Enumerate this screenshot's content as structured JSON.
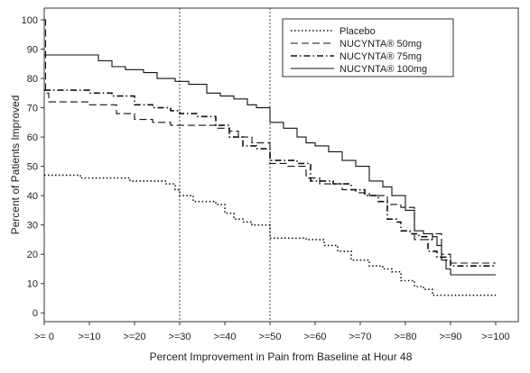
{
  "chart_data": {
    "type": "line",
    "title": "",
    "xlabel": "Percent Improvement in Pain from Baseline at Hour 48",
    "ylabel": "Percent of Patients Improved",
    "xlim": [
      0,
      105
    ],
    "ylim": [
      -3,
      104
    ],
    "x_ticks": [
      0,
      10,
      20,
      30,
      40,
      50,
      60,
      70,
      80,
      90,
      100
    ],
    "x_tick_labels": [
      ">= 0",
      ">=10",
      ">=20",
      ">=30",
      ">=40",
      ">=50",
      ">=60",
      ">=70",
      ">=80",
      ">=90",
      ">=100"
    ],
    "y_ticks": [
      0,
      10,
      20,
      30,
      40,
      50,
      60,
      70,
      80,
      90,
      100
    ],
    "y_tick_labels": [
      "0",
      "10",
      "20",
      "30",
      "40",
      "50",
      "60",
      "70",
      "80",
      "90",
      "100"
    ],
    "reference_lines_x": [
      30,
      50
    ],
    "legend_position": "top-right",
    "grid": false,
    "series": [
      {
        "name": "Placebo",
        "dash": "dotted",
        "points": [
          [
            0,
            47
          ],
          [
            5,
            47
          ],
          [
            8,
            46
          ],
          [
            16,
            46
          ],
          [
            19,
            45
          ],
          [
            27,
            44
          ],
          [
            29,
            42
          ],
          [
            30,
            40
          ],
          [
            33,
            38
          ],
          [
            38,
            37
          ],
          [
            40,
            34
          ],
          [
            42,
            32
          ],
          [
            44,
            31
          ],
          [
            46,
            30
          ],
          [
            50,
            30
          ],
          [
            50,
            25.5
          ],
          [
            58,
            25
          ],
          [
            62,
            23
          ],
          [
            65,
            21
          ],
          [
            68,
            18
          ],
          [
            72,
            16
          ],
          [
            75,
            15
          ],
          [
            77,
            14
          ],
          [
            79,
            11
          ],
          [
            82,
            9
          ],
          [
            84,
            8
          ],
          [
            86,
            6
          ],
          [
            90,
            6
          ],
          [
            95,
            6
          ],
          [
            100,
            6
          ]
        ]
      },
      {
        "name": "NUCYNTA® 50mg",
        "dash": "dashed",
        "points": [
          [
            0,
            100
          ],
          [
            0.3,
            75
          ],
          [
            1,
            72
          ],
          [
            8,
            72
          ],
          [
            10,
            71
          ],
          [
            13,
            71
          ],
          [
            16,
            68
          ],
          [
            20,
            66
          ],
          [
            24,
            65
          ],
          [
            28,
            64
          ],
          [
            30,
            64
          ],
          [
            35,
            64
          ],
          [
            38,
            63
          ],
          [
            41,
            62
          ],
          [
            43,
            60
          ],
          [
            46,
            58
          ],
          [
            50,
            58
          ],
          [
            50,
            51
          ],
          [
            54,
            50
          ],
          [
            58,
            46
          ],
          [
            61,
            44
          ],
          [
            66,
            42
          ],
          [
            69,
            41
          ],
          [
            72,
            40
          ],
          [
            76,
            37
          ],
          [
            79,
            36
          ],
          [
            82,
            25
          ],
          [
            84,
            25
          ],
          [
            86,
            27
          ],
          [
            88,
            20
          ],
          [
            90,
            17
          ],
          [
            95,
            17
          ],
          [
            100,
            17
          ]
        ]
      },
      {
        "name": "NUCYNTA® 75mg",
        "dash": "dashdot",
        "points": [
          [
            0,
            76
          ],
          [
            8,
            76
          ],
          [
            10,
            75
          ],
          [
            15,
            74
          ],
          [
            20,
            71
          ],
          [
            24,
            70
          ],
          [
            28,
            69
          ],
          [
            30,
            68
          ],
          [
            34,
            67
          ],
          [
            38,
            64
          ],
          [
            41,
            60
          ],
          [
            44,
            57
          ],
          [
            47,
            56
          ],
          [
            50,
            56
          ],
          [
            50,
            52
          ],
          [
            56,
            51
          ],
          [
            59,
            45
          ],
          [
            64,
            44
          ],
          [
            68,
            42
          ],
          [
            71,
            40
          ],
          [
            74,
            38
          ],
          [
            76,
            32
          ],
          [
            78,
            31
          ],
          [
            79,
            28
          ],
          [
            81,
            27
          ],
          [
            83,
            26
          ],
          [
            85,
            21
          ],
          [
            87,
            19
          ],
          [
            89,
            18
          ],
          [
            90,
            16
          ],
          [
            95,
            16
          ],
          [
            100,
            16
          ]
        ]
      },
      {
        "name": "NUCYNTA® 100mg",
        "dash": "solid",
        "points": [
          [
            0,
            88
          ],
          [
            9,
            88
          ],
          [
            12,
            86
          ],
          [
            15,
            84
          ],
          [
            18,
            83
          ],
          [
            22,
            82
          ],
          [
            25,
            80
          ],
          [
            29,
            79
          ],
          [
            32,
            78
          ],
          [
            36,
            75
          ],
          [
            39,
            74
          ],
          [
            42,
            73
          ],
          [
            45,
            71
          ],
          [
            47,
            70
          ],
          [
            50,
            70
          ],
          [
            50,
            65
          ],
          [
            53,
            63
          ],
          [
            56,
            60
          ],
          [
            58,
            58
          ],
          [
            60,
            57
          ],
          [
            63,
            55
          ],
          [
            66,
            52
          ],
          [
            69,
            50
          ],
          [
            72,
            45
          ],
          [
            75,
            43
          ],
          [
            77,
            40
          ],
          [
            80,
            35
          ],
          [
            82,
            28
          ],
          [
            84,
            27
          ],
          [
            86,
            26
          ],
          [
            87,
            23
          ],
          [
            88,
            18
          ],
          [
            89,
            15
          ],
          [
            90,
            13
          ],
          [
            95,
            13
          ],
          [
            100,
            13
          ]
        ]
      }
    ]
  }
}
